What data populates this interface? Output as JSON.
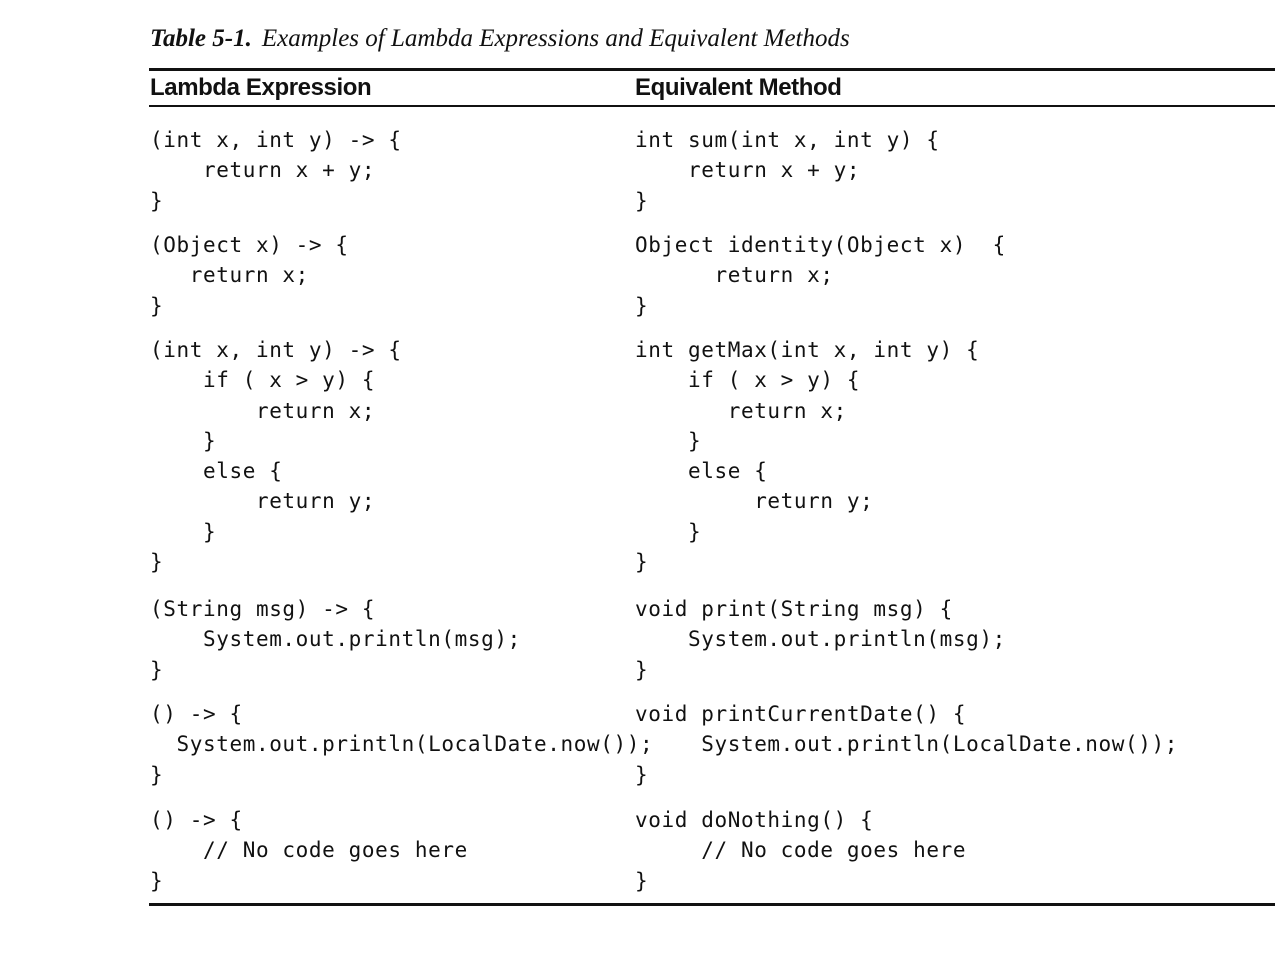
{
  "caption": {
    "label": "Table 5-1.",
    "title": "Examples of Lambda Expressions and Equivalent Methods"
  },
  "table": {
    "headers": [
      "Lambda Expression",
      "Equivalent Method"
    ],
    "rows": [
      {
        "lambda": "(int x, int y) -> {\n    return x + y;\n}",
        "method": "int sum(int x, int y) {\n    return x + y;\n}"
      },
      {
        "lambda": "(Object x) -> {\n   return x;\n}",
        "method": "Object identity(Object x)  {\n      return x;\n}"
      },
      {
        "lambda": "(int x, int y) -> {\n    if ( x > y) {\n        return x;\n    }\n    else {\n        return y;\n    }\n}",
        "method": "int getMax(int x, int y) {\n    if ( x > y) {\n       return x;\n    }\n    else {\n         return y;\n    }\n}"
      },
      {
        "lambda": "(String msg) -> {\n    System.out.println(msg);\n}",
        "method": "void print(String msg) {\n    System.out.println(msg);\n}"
      },
      {
        "lambda": "() -> {\n  System.out.println(LocalDate.now());\n}",
        "method": "void printCurrentDate() {\n     System.out.println(LocalDate.now());\n}"
      },
      {
        "lambda": "() -> {\n    // No code goes here\n}",
        "method": "void doNothing() {\n     // No code goes here\n}"
      }
    ]
  }
}
